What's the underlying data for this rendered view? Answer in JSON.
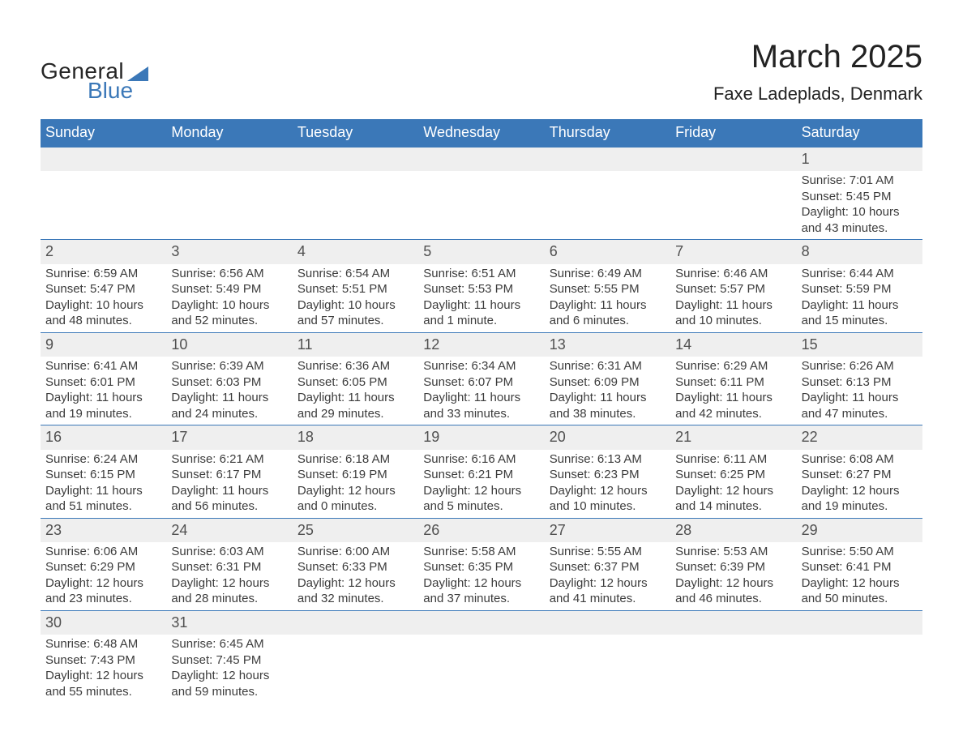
{
  "brand": {
    "word1": "General",
    "word2": "Blue",
    "accent": "#3b78b8",
    "text_color": "#262626"
  },
  "title": "March 2025",
  "location": "Faxe Ladeplads, Denmark",
  "weekdays": [
    "Sunday",
    "Monday",
    "Tuesday",
    "Wednesday",
    "Thursday",
    "Friday",
    "Saturday"
  ],
  "colors": {
    "header_bg": "#3b78b8",
    "header_text": "#ffffff",
    "daynum_bg": "#efefef",
    "daynum_text": "#505050",
    "detail_text": "#3c3c3c",
    "border": "#3b78b8",
    "background": "#ffffff"
  },
  "typography": {
    "title_fontsize": 40,
    "location_fontsize": 22,
    "weekday_fontsize": 18,
    "daynum_fontsize": 18,
    "detail_fontsize": 15,
    "logo_fontsize": 28
  },
  "layout": {
    "columns": 7,
    "rows": 6,
    "leading_blanks": 6
  },
  "days": [
    {
      "n": 1,
      "sunrise": "7:01 AM",
      "sunset": "5:45 PM",
      "daylight": "10 hours and 43 minutes."
    },
    {
      "n": 2,
      "sunrise": "6:59 AM",
      "sunset": "5:47 PM",
      "daylight": "10 hours and 48 minutes."
    },
    {
      "n": 3,
      "sunrise": "6:56 AM",
      "sunset": "5:49 PM",
      "daylight": "10 hours and 52 minutes."
    },
    {
      "n": 4,
      "sunrise": "6:54 AM",
      "sunset": "5:51 PM",
      "daylight": "10 hours and 57 minutes."
    },
    {
      "n": 5,
      "sunrise": "6:51 AM",
      "sunset": "5:53 PM",
      "daylight": "11 hours and 1 minute."
    },
    {
      "n": 6,
      "sunrise": "6:49 AM",
      "sunset": "5:55 PM",
      "daylight": "11 hours and 6 minutes."
    },
    {
      "n": 7,
      "sunrise": "6:46 AM",
      "sunset": "5:57 PM",
      "daylight": "11 hours and 10 minutes."
    },
    {
      "n": 8,
      "sunrise": "6:44 AM",
      "sunset": "5:59 PM",
      "daylight": "11 hours and 15 minutes."
    },
    {
      "n": 9,
      "sunrise": "6:41 AM",
      "sunset": "6:01 PM",
      "daylight": "11 hours and 19 minutes."
    },
    {
      "n": 10,
      "sunrise": "6:39 AM",
      "sunset": "6:03 PM",
      "daylight": "11 hours and 24 minutes."
    },
    {
      "n": 11,
      "sunrise": "6:36 AM",
      "sunset": "6:05 PM",
      "daylight": "11 hours and 29 minutes."
    },
    {
      "n": 12,
      "sunrise": "6:34 AM",
      "sunset": "6:07 PM",
      "daylight": "11 hours and 33 minutes."
    },
    {
      "n": 13,
      "sunrise": "6:31 AM",
      "sunset": "6:09 PM",
      "daylight": "11 hours and 38 minutes."
    },
    {
      "n": 14,
      "sunrise": "6:29 AM",
      "sunset": "6:11 PM",
      "daylight": "11 hours and 42 minutes."
    },
    {
      "n": 15,
      "sunrise": "6:26 AM",
      "sunset": "6:13 PM",
      "daylight": "11 hours and 47 minutes."
    },
    {
      "n": 16,
      "sunrise": "6:24 AM",
      "sunset": "6:15 PM",
      "daylight": "11 hours and 51 minutes."
    },
    {
      "n": 17,
      "sunrise": "6:21 AM",
      "sunset": "6:17 PM",
      "daylight": "11 hours and 56 minutes."
    },
    {
      "n": 18,
      "sunrise": "6:18 AM",
      "sunset": "6:19 PM",
      "daylight": "12 hours and 0 minutes."
    },
    {
      "n": 19,
      "sunrise": "6:16 AM",
      "sunset": "6:21 PM",
      "daylight": "12 hours and 5 minutes."
    },
    {
      "n": 20,
      "sunrise": "6:13 AM",
      "sunset": "6:23 PM",
      "daylight": "12 hours and 10 minutes."
    },
    {
      "n": 21,
      "sunrise": "6:11 AM",
      "sunset": "6:25 PM",
      "daylight": "12 hours and 14 minutes."
    },
    {
      "n": 22,
      "sunrise": "6:08 AM",
      "sunset": "6:27 PM",
      "daylight": "12 hours and 19 minutes."
    },
    {
      "n": 23,
      "sunrise": "6:06 AM",
      "sunset": "6:29 PM",
      "daylight": "12 hours and 23 minutes."
    },
    {
      "n": 24,
      "sunrise": "6:03 AM",
      "sunset": "6:31 PM",
      "daylight": "12 hours and 28 minutes."
    },
    {
      "n": 25,
      "sunrise": "6:00 AM",
      "sunset": "6:33 PM",
      "daylight": "12 hours and 32 minutes."
    },
    {
      "n": 26,
      "sunrise": "5:58 AM",
      "sunset": "6:35 PM",
      "daylight": "12 hours and 37 minutes."
    },
    {
      "n": 27,
      "sunrise": "5:55 AM",
      "sunset": "6:37 PM",
      "daylight": "12 hours and 41 minutes."
    },
    {
      "n": 28,
      "sunrise": "5:53 AM",
      "sunset": "6:39 PM",
      "daylight": "12 hours and 46 minutes."
    },
    {
      "n": 29,
      "sunrise": "5:50 AM",
      "sunset": "6:41 PM",
      "daylight": "12 hours and 50 minutes."
    },
    {
      "n": 30,
      "sunrise": "6:48 AM",
      "sunset": "7:43 PM",
      "daylight": "12 hours and 55 minutes."
    },
    {
      "n": 31,
      "sunrise": "6:45 AM",
      "sunset": "7:45 PM",
      "daylight": "12 hours and 59 minutes."
    }
  ],
  "labels": {
    "sunrise": "Sunrise:",
    "sunset": "Sunset:",
    "daylight": "Daylight:"
  }
}
